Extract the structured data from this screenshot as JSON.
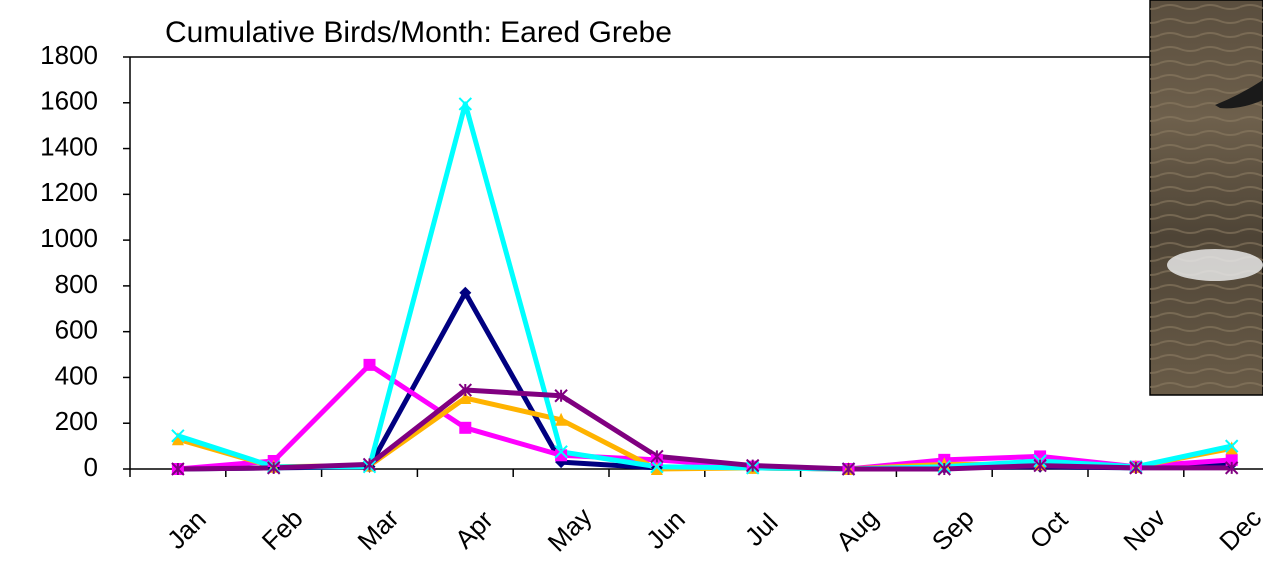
{
  "chart_data": {
    "type": "line",
    "title": "Cumulative Birds/Month: Eared Grebe",
    "categories": [
      "Jan",
      "Feb",
      "Mar",
      "Apr",
      "May",
      "Jun",
      "Jul",
      "Aug",
      "Sep",
      "Oct",
      "Nov",
      "Dec"
    ],
    "series": [
      {
        "color": "#000080",
        "marker": "diamond",
        "values": [
          0,
          5,
          10,
          770,
          30,
          5,
          5,
          0,
          5,
          10,
          5,
          20
        ]
      },
      {
        "color": "#ff00ff",
        "marker": "square",
        "values": [
          0,
          35,
          455,
          180,
          60,
          40,
          10,
          0,
          40,
          55,
          10,
          40
        ]
      },
      {
        "color": "#ffb300",
        "marker": "triangle",
        "values": [
          130,
          10,
          15,
          310,
          215,
          0,
          5,
          0,
          20,
          20,
          10,
          90
        ]
      },
      {
        "color": "#00ffff",
        "marker": "x",
        "values": [
          145,
          10,
          10,
          1595,
          75,
          10,
          5,
          0,
          10,
          35,
          10,
          100
        ]
      },
      {
        "color": "#800080",
        "marker": "asterisk",
        "values": [
          0,
          5,
          20,
          345,
          320,
          55,
          15,
          0,
          0,
          15,
          5,
          5
        ]
      }
    ],
    "ylim": [
      0,
      1800
    ],
    "yticks": [
      0,
      200,
      400,
      600,
      800,
      1000,
      1200,
      1400,
      1600,
      1800
    ]
  }
}
